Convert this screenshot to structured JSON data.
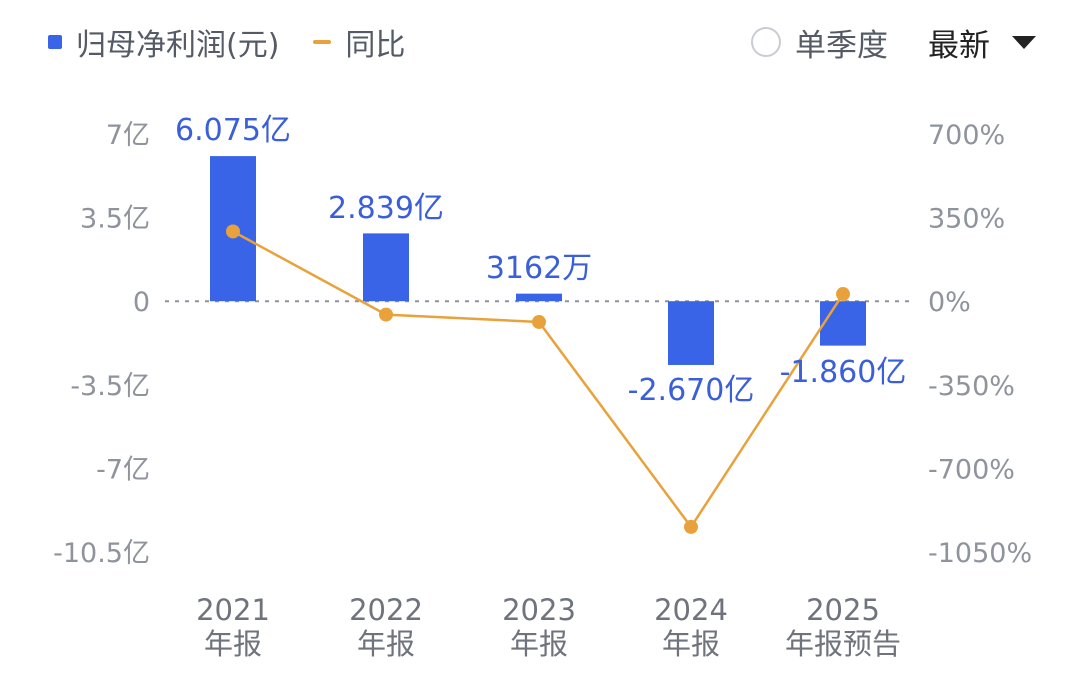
{
  "legend": {
    "bar_label": "归母净利润(元)",
    "line_label": "同比"
  },
  "controls": {
    "radio_label": "单季度",
    "select_value": "最新"
  },
  "colors": {
    "bar": "#3a64e8",
    "line": "#e9a23b",
    "text": "#3a5fd8",
    "axis_text": "#8e939c"
  },
  "chart_data": {
    "type": "bar",
    "categories": [
      [
        "2021",
        "年报"
      ],
      [
        "2022",
        "年报"
      ],
      [
        "2023",
        "年报"
      ],
      [
        "2024",
        "年报"
      ],
      [
        "2025",
        "年报预告"
      ]
    ],
    "series": [
      {
        "name": "归母净利润(元)",
        "type": "bar",
        "axis": "left",
        "unit": "亿",
        "values": [
          6.075,
          2.839,
          0.3162,
          -2.67,
          -1.86
        ],
        "labels": [
          "6.075亿",
          "2.839亿",
          "3162万",
          "-2.670亿",
          "-1.860亿"
        ]
      },
      {
        "name": "同比",
        "type": "line",
        "axis": "right",
        "unit": "%",
        "values": [
          292,
          -56,
          -87,
          -945,
          30
        ]
      }
    ],
    "left_axis": {
      "ticks": [
        7,
        3.5,
        0,
        -3.5,
        -7,
        -10.5
      ],
      "tick_labels": [
        "7亿",
        "3.5亿",
        "0",
        "-3.5亿",
        "-7亿",
        "-10.5亿"
      ],
      "ylim": [
        -10.5,
        7
      ]
    },
    "right_axis": {
      "ticks": [
        700,
        350,
        0,
        -350,
        -700,
        -1050
      ],
      "tick_labels": [
        "700%",
        "350%",
        "0%",
        "-350%",
        "-700%",
        "-1050%"
      ],
      "ylim": [
        -1050,
        700
      ]
    },
    "grid": "zero-line only (dashed)",
    "legend_position": "top-left"
  }
}
